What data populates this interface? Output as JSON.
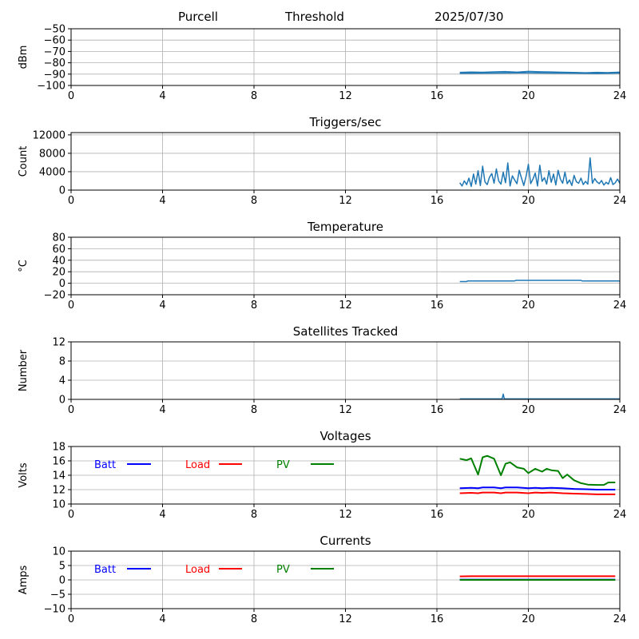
{
  "header": {
    "site": "Purcell",
    "mode": "Threshold",
    "date": "2025/07/30"
  },
  "chart_data": [
    {
      "id": "signal",
      "type": "line",
      "title": "",
      "xlabel": "",
      "ylabel": "dBm",
      "xlim": [
        0,
        24
      ],
      "ylim": [
        -100,
        -50
      ],
      "xticks": [
        0,
        4,
        8,
        12,
        16,
        20,
        24
      ],
      "xtick_labels": [
        "0",
        "4",
        "8",
        "12",
        "16",
        "20",
        "24"
      ],
      "yticks": [
        -50,
        -60,
        -70,
        -80,
        -90,
        -100
      ],
      "ytick_labels": [
        "−50",
        "−60",
        "−70",
        "−80",
        "−90",
        "−100"
      ],
      "grid": true,
      "series": [
        {
          "color": "#1f77b4",
          "width": 1.5,
          "x": [
            17.0,
            17.5,
            18.0,
            18.5,
            19.0,
            19.5,
            20.0,
            20.5,
            21.0,
            21.5,
            22.0,
            22.5,
            23.0,
            23.5,
            24.0
          ],
          "y": [
            -88.5,
            -88.2,
            -88.4,
            -88.0,
            -87.8,
            -88.3,
            -87.6,
            -87.9,
            -88.1,
            -88.4,
            -88.6,
            -88.8,
            -88.5,
            -88.7,
            -88.3
          ]
        },
        {
          "color": "#1f77b4",
          "width": 1.5,
          "x": [
            17.0,
            18.0,
            19.0,
            20.0,
            21.0,
            22.0,
            23.0,
            24.0
          ],
          "y": [
            -89.3,
            -89.2,
            -89.0,
            -88.9,
            -89.1,
            -89.2,
            -89.4,
            -89.1
          ]
        }
      ]
    },
    {
      "id": "triggers",
      "type": "line",
      "title": "Triggers/sec",
      "xlabel": "",
      "ylabel": "Count",
      "xlim": [
        0,
        24
      ],
      "ylim": [
        0,
        12500
      ],
      "xticks": [
        0,
        4,
        8,
        12,
        16,
        20,
        24
      ],
      "xtick_labels": [
        "0",
        "4",
        "8",
        "12",
        "16",
        "20",
        "24"
      ],
      "yticks": [
        0,
        4000,
        8000,
        12000
      ],
      "ytick_labels": [
        "0",
        "4000",
        "8000",
        "12000"
      ],
      "grid": true,
      "series": [
        {
          "color": "#1f77b4",
          "width": 1.5,
          "x": [
            17.0,
            17.1,
            17.2,
            17.3,
            17.4,
            17.5,
            17.6,
            17.7,
            17.8,
            17.9,
            18.0,
            18.1,
            18.2,
            18.3,
            18.4,
            18.5,
            18.6,
            18.7,
            18.8,
            18.9,
            19.0,
            19.1,
            19.2,
            19.3,
            19.4,
            19.5,
            19.6,
            19.7,
            19.8,
            19.9,
            20.0,
            20.1,
            20.2,
            20.3,
            20.4,
            20.5,
            20.6,
            20.7,
            20.8,
            20.9,
            21.0,
            21.1,
            21.2,
            21.3,
            21.4,
            21.5,
            21.6,
            21.7,
            21.8,
            21.9,
            22.0,
            22.1,
            22.2,
            22.3,
            22.4,
            22.5,
            22.6,
            22.7,
            22.8,
            22.9,
            23.0,
            23.1,
            23.2,
            23.3,
            23.4,
            23.5,
            23.6,
            23.7,
            23.8,
            23.9,
            24.0
          ],
          "y": [
            1600,
            900,
            2000,
            1200,
            2600,
            800,
            3500,
            1300,
            4200,
            1000,
            5200,
            1800,
            1200,
            2800,
            3600,
            1500,
            4600,
            2000,
            1300,
            3900,
            1600,
            5900,
            900,
            3100,
            2200,
            1400,
            4300,
            2600,
            1000,
            3000,
            5600,
            1400,
            2400,
            3700,
            900,
            5400,
            1900,
            2700,
            1300,
            4200,
            1700,
            3500,
            1100,
            4300,
            2400,
            1500,
            3900,
            1400,
            2200,
            1000,
            3200,
            1800,
            1500,
            2600,
            1200,
            1900,
            1300,
            7000,
            1500,
            2500,
            1800,
            1400,
            2100,
            1100,
            1700,
            1300,
            2700,
            1200,
            1600,
            2400,
            1500
          ]
        }
      ]
    },
    {
      "id": "temperature",
      "type": "line",
      "title": "Temperature",
      "xlabel": "",
      "ylabel": "°C",
      "xlim": [
        0,
        24
      ],
      "ylim": [
        -20,
        80
      ],
      "xticks": [
        0,
        4,
        8,
        12,
        16,
        20,
        24
      ],
      "xtick_labels": [
        "0",
        "4",
        "8",
        "12",
        "16",
        "20",
        "24"
      ],
      "yticks": [
        -20,
        0,
        20,
        40,
        60,
        80
      ],
      "ytick_labels": [
        "−20",
        "0",
        "20",
        "40",
        "60",
        "80"
      ],
      "grid": true,
      "series": [
        {
          "color": "#1f77b4",
          "width": 1.5,
          "x": [
            17.0,
            17.3,
            17.35,
            19.4,
            19.45,
            22.3,
            22.35,
            24.0
          ],
          "y": [
            3,
            3,
            4,
            4,
            5,
            5,
            4,
            4
          ]
        }
      ]
    },
    {
      "id": "satellites",
      "type": "line",
      "title": "Satellites Tracked",
      "xlabel": "",
      "ylabel": "Number",
      "xlim": [
        0,
        24
      ],
      "ylim": [
        0,
        12
      ],
      "xticks": [
        0,
        4,
        8,
        12,
        16,
        20,
        24
      ],
      "xtick_labels": [
        "0",
        "4",
        "8",
        "12",
        "16",
        "20",
        "24"
      ],
      "yticks": [
        0,
        4,
        8,
        12
      ],
      "ytick_labels": [
        "0",
        "4",
        "8",
        "12"
      ],
      "grid": true,
      "series": [
        {
          "color": "#1f77b4",
          "width": 1.5,
          "x": [
            17.0,
            18.85,
            18.9,
            18.95,
            19.0,
            24.0
          ],
          "y": [
            0.1,
            0.1,
            1.1,
            0.1,
            0.1,
            0.1
          ]
        }
      ]
    },
    {
      "id": "voltages",
      "type": "line",
      "title": "Voltages",
      "xlabel": "",
      "ylabel": "Volts",
      "xlim": [
        0,
        24
      ],
      "ylim": [
        10,
        18
      ],
      "xticks": [
        0,
        4,
        8,
        12,
        16,
        20,
        24
      ],
      "xtick_labels": [
        "0",
        "4",
        "8",
        "12",
        "16",
        "20",
        "24"
      ],
      "yticks": [
        10,
        12,
        14,
        16,
        18
      ],
      "ytick_labels": [
        "10",
        "12",
        "14",
        "16",
        "18"
      ],
      "grid": true,
      "legend": {
        "placement": "top-left",
        "entries": [
          {
            "label": "Batt",
            "color": "#0000ff"
          },
          {
            "label": "Load",
            "color": "#ff0000"
          },
          {
            "label": "PV",
            "color": "#008000"
          }
        ]
      },
      "series": [
        {
          "name": "Batt",
          "color": "#0000ff",
          "width": 2,
          "x": [
            17.0,
            17.5,
            17.8,
            18.0,
            18.5,
            18.8,
            19.0,
            19.5,
            20.0,
            20.3,
            20.6,
            21.0,
            21.5,
            22.0,
            22.5,
            23.0,
            23.5,
            23.8
          ],
          "y": [
            12.2,
            12.25,
            12.2,
            12.3,
            12.3,
            12.2,
            12.3,
            12.3,
            12.2,
            12.25,
            12.2,
            12.25,
            12.2,
            12.1,
            12.05,
            12.0,
            12.0,
            12.0
          ]
        },
        {
          "name": "Load",
          "color": "#ff0000",
          "width": 2,
          "x": [
            17.0,
            17.5,
            17.8,
            18.0,
            18.5,
            18.8,
            19.0,
            19.5,
            20.0,
            20.3,
            20.6,
            21.0,
            21.5,
            22.0,
            22.5,
            23.0,
            23.5,
            23.8
          ],
          "y": [
            11.5,
            11.55,
            11.5,
            11.6,
            11.6,
            11.5,
            11.6,
            11.6,
            11.5,
            11.6,
            11.55,
            11.6,
            11.5,
            11.45,
            11.4,
            11.35,
            11.35,
            11.35
          ]
        },
        {
          "name": "PV",
          "color": "#008000",
          "width": 2,
          "x": [
            17.0,
            17.3,
            17.5,
            17.8,
            18.0,
            18.2,
            18.5,
            18.8,
            19.0,
            19.2,
            19.5,
            19.8,
            20.0,
            20.3,
            20.6,
            20.8,
            21.0,
            21.3,
            21.5,
            21.7,
            22.0,
            22.3,
            22.6,
            23.0,
            23.3,
            23.5,
            23.8
          ],
          "y": [
            16.3,
            16.1,
            16.35,
            14.1,
            16.5,
            16.7,
            16.3,
            14.0,
            15.6,
            15.8,
            15.1,
            14.9,
            14.3,
            14.9,
            14.5,
            14.9,
            14.7,
            14.6,
            13.6,
            14.1,
            13.3,
            12.9,
            12.7,
            12.65,
            12.65,
            13.0,
            13.0
          ]
        }
      ]
    },
    {
      "id": "currents",
      "type": "line",
      "title": "Currents",
      "xlabel": "",
      "ylabel": "Amps",
      "xlim": [
        0,
        24
      ],
      "ylim": [
        -10,
        10
      ],
      "xticks": [
        0,
        4,
        8,
        12,
        16,
        20,
        24
      ],
      "xtick_labels": [
        "0",
        "4",
        "8",
        "12",
        "16",
        "20",
        "24"
      ],
      "yticks": [
        -10,
        -5,
        0,
        5,
        10
      ],
      "ytick_labels": [
        "−10",
        "−5",
        "0",
        "5",
        "10"
      ],
      "grid": true,
      "legend": {
        "placement": "top-left",
        "entries": [
          {
            "label": "Batt",
            "color": "#0000ff"
          },
          {
            "label": "Load",
            "color": "#ff0000"
          },
          {
            "label": "PV",
            "color": "#008000"
          }
        ]
      },
      "series": [
        {
          "name": "Batt",
          "color": "#0000ff",
          "width": 2,
          "x": [
            17.0,
            20.0,
            23.8
          ],
          "y": [
            0.1,
            0.1,
            0.1
          ]
        },
        {
          "name": "Load",
          "color": "#ff0000",
          "width": 2,
          "x": [
            17.0,
            17.5,
            20.0,
            22.0,
            23.8
          ],
          "y": [
            1.2,
            1.3,
            1.3,
            1.3,
            1.3
          ]
        },
        {
          "name": "PV",
          "color": "#008000",
          "width": 2,
          "x": [
            17.0,
            20.0,
            23.8
          ],
          "y": [
            0.0,
            0.0,
            0.0
          ]
        }
      ]
    }
  ]
}
